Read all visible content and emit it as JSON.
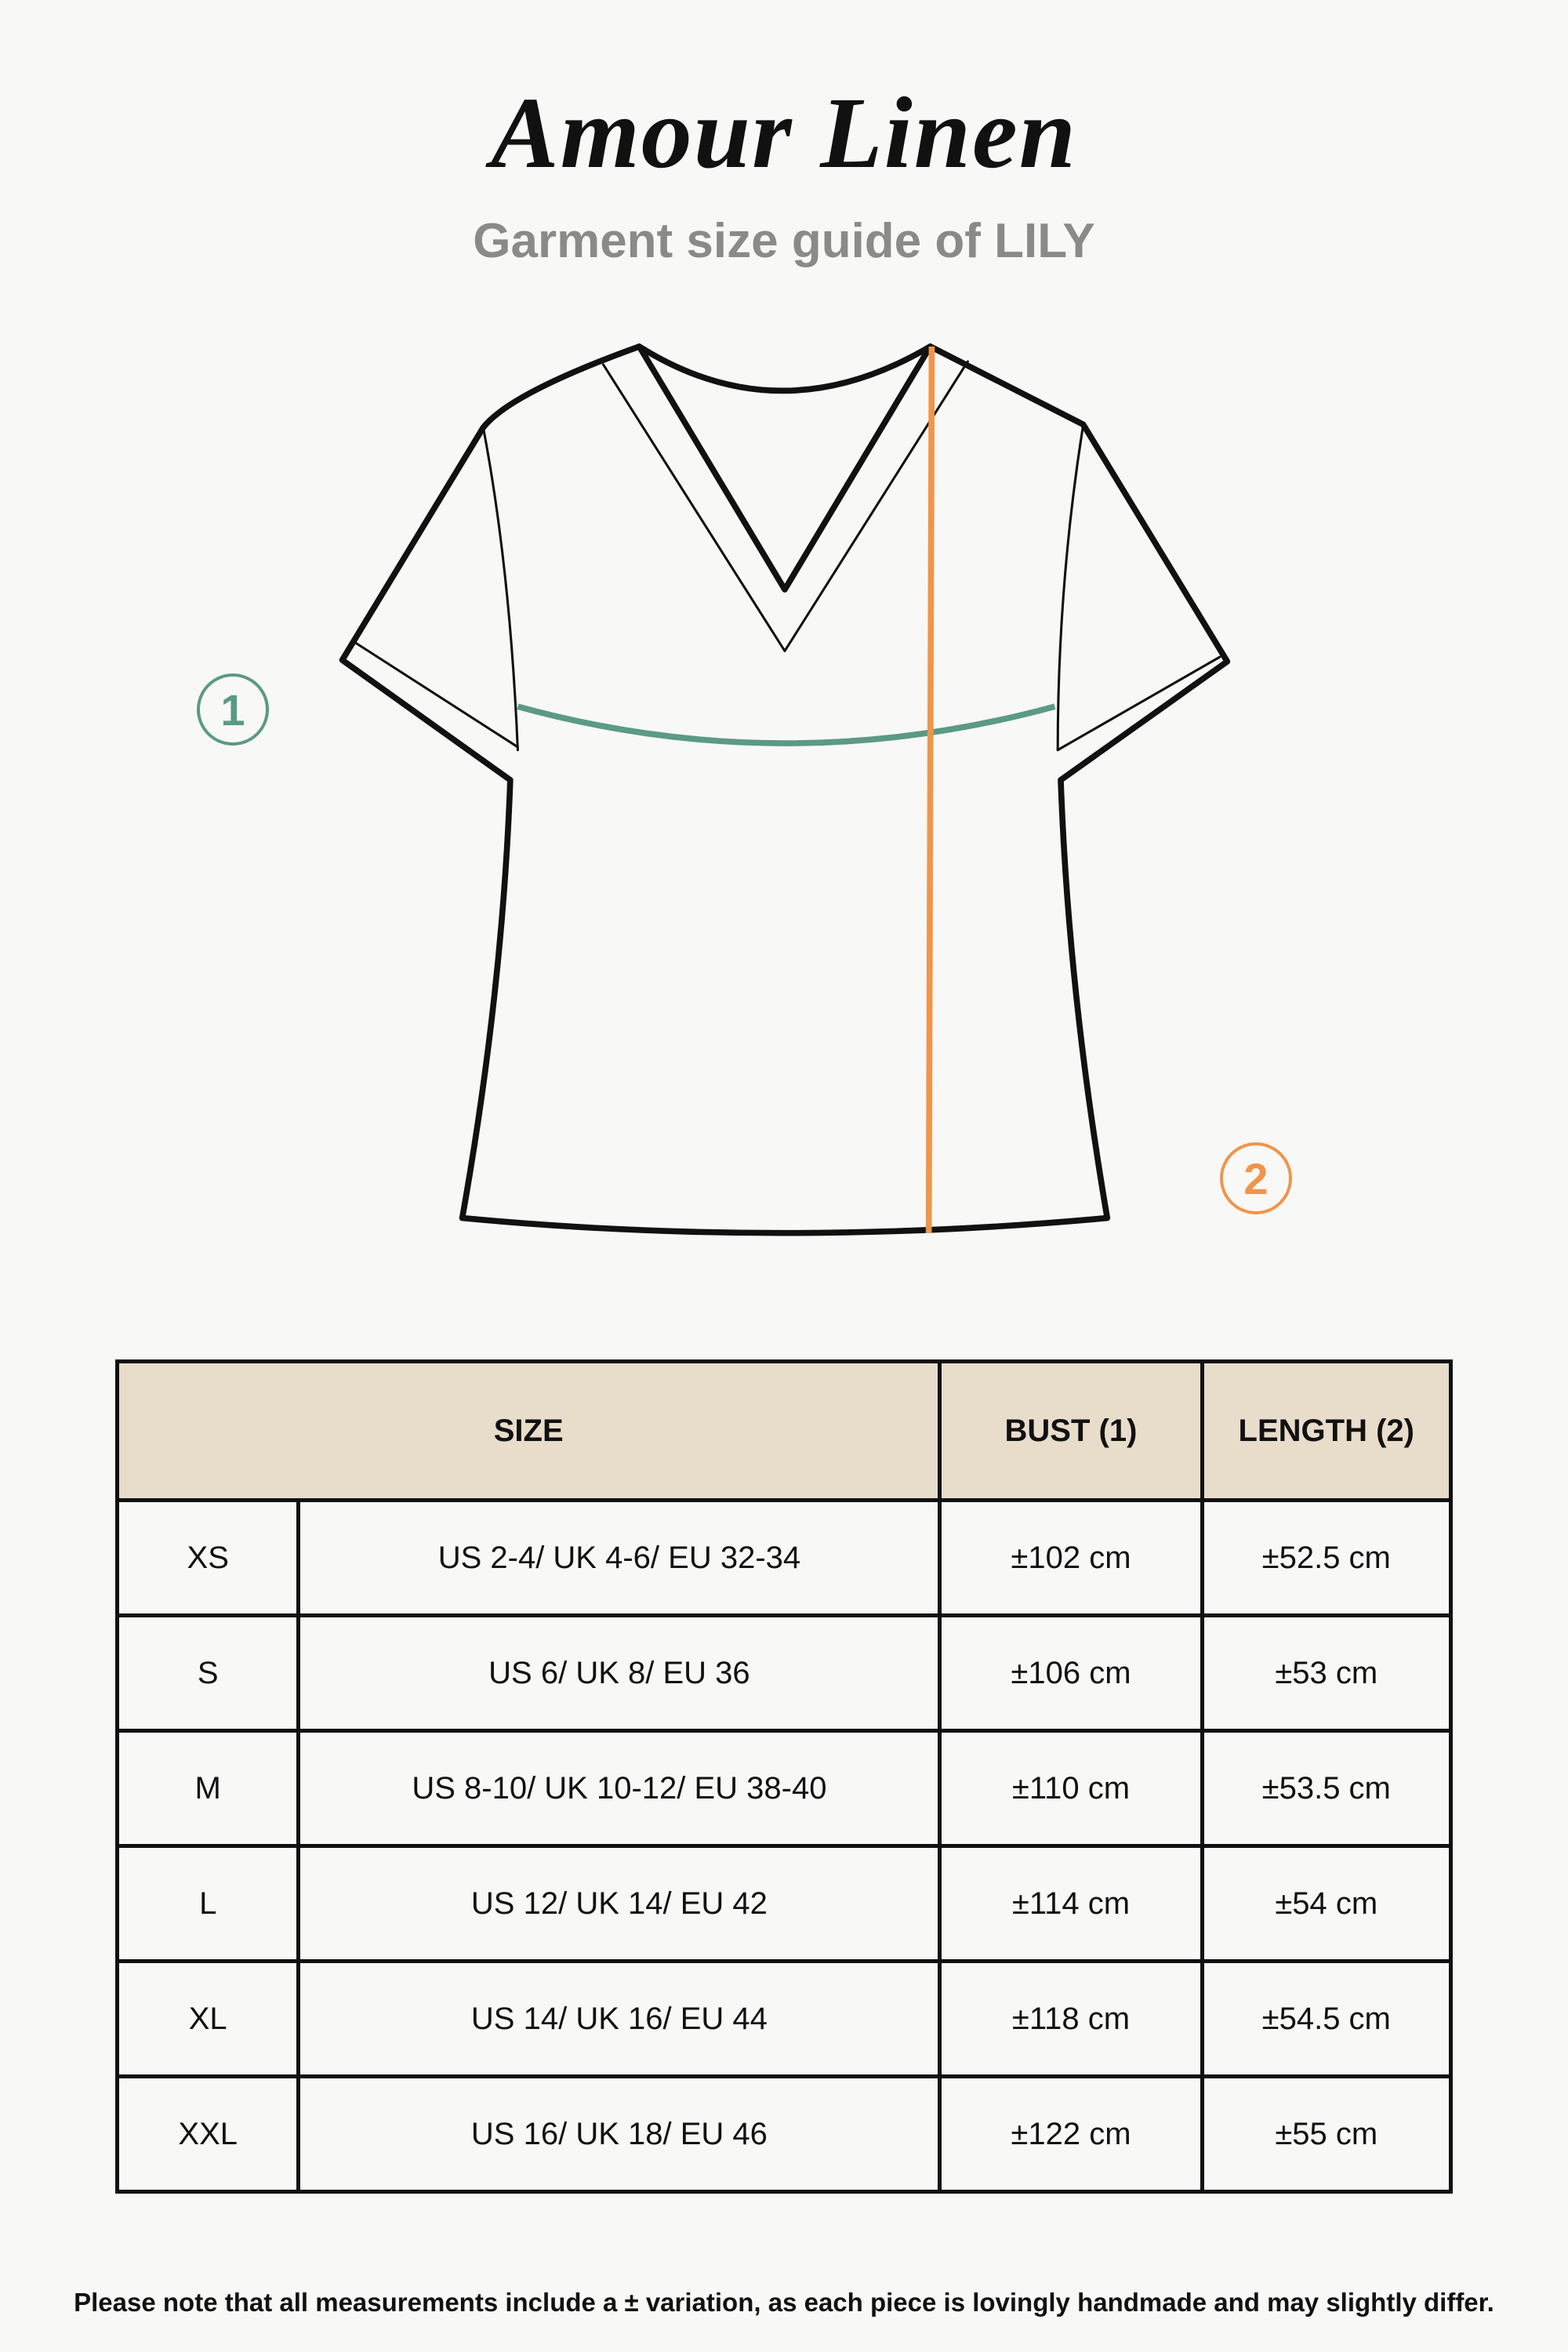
{
  "brand": "Amour Linen",
  "subtitle": "Garment size guide of LILY",
  "markers": {
    "bust": "1",
    "length": "2"
  },
  "colors": {
    "bust_line": "#5b9a85",
    "length_line": "#f0954a",
    "header_bg": "#e8dccb"
  },
  "table": {
    "headers": {
      "size": "SIZE",
      "bust": "BUST (1)",
      "length": "LENGTH (2)"
    },
    "rows": [
      {
        "size": "XS",
        "conversion": "US 2-4/ UK 4-6/ EU 32-34",
        "bust": "±102 cm",
        "length": "±52.5 cm"
      },
      {
        "size": "S",
        "conversion": "US 6/ UK 8/ EU 36",
        "bust": "±106 cm",
        "length": "±53 cm"
      },
      {
        "size": "M",
        "conversion": "US 8-10/ UK 10-12/ EU 38-40",
        "bust": "±110 cm",
        "length": "±53.5 cm"
      },
      {
        "size": "L",
        "conversion": "US 12/ UK 14/ EU 42",
        "bust": "±114 cm",
        "length": "±54 cm"
      },
      {
        "size": "XL",
        "conversion": "US 14/ UK 16/ EU 44",
        "bust": "±118 cm",
        "length": "±54.5 cm"
      },
      {
        "size": "XXL",
        "conversion": "US 16/ UK 18/ EU 46",
        "bust": "±122 cm",
        "length": "±55 cm"
      }
    ]
  },
  "note": "Please note that all measurements include a ± variation, as each piece is lovingly handmade and may slightly differ."
}
